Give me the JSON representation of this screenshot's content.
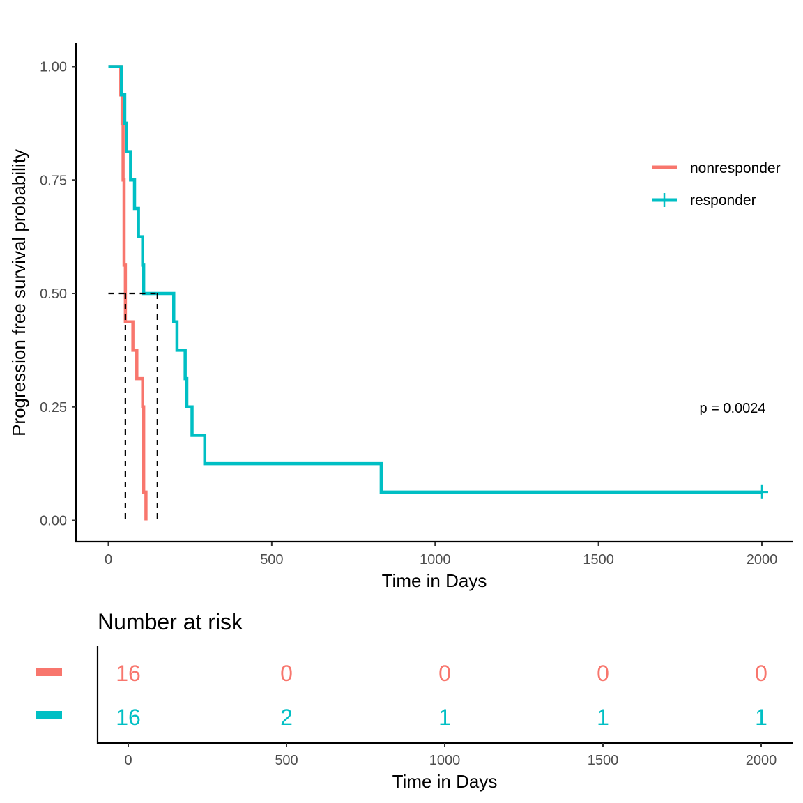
{
  "chart_data": [
    {
      "type": "line",
      "subtype": "kaplan-meier",
      "title": "",
      "xlabel": "Time in Days",
      "ylabel": "Progression free survival probability",
      "xlim": [
        -100,
        2100
      ],
      "ylim": [
        -0.05,
        1.05
      ],
      "x_ticks": [
        0,
        500,
        1000,
        1500,
        2000
      ],
      "x_tick_labels": [
        "0",
        "500",
        "1000",
        "1500",
        "2000"
      ],
      "y_ticks": [
        0,
        0.25,
        0.5,
        0.75,
        1
      ],
      "y_tick_labels": [
        "0.00",
        "0.25",
        "0.50",
        "0.75",
        "1.00"
      ],
      "grid": false,
      "legend_position": "right",
      "annotation": "p = 0.0024",
      "median_survival": {
        "y": 0.5,
        "x_values": [
          52,
          150
        ]
      },
      "series": [
        {
          "name": "nonresponder",
          "color": "#F8766D",
          "censor_marks": [],
          "steps": [
            [
              0,
              1.0
            ],
            [
              38,
              0.9375
            ],
            [
              42,
              0.875
            ],
            [
              45,
              0.75
            ],
            [
              48,
              0.5625
            ],
            [
              52,
              0.4375
            ],
            [
              75,
              0.375
            ],
            [
              87,
              0.3125
            ],
            [
              105,
              0.25
            ],
            [
              108,
              0.0625
            ],
            [
              115,
              0.0
            ]
          ]
        },
        {
          "name": "responder",
          "color": "#00BFC4",
          "censor_marks": [
            [
              2000,
              0.0625
            ]
          ],
          "steps": [
            [
              0,
              1.0
            ],
            [
              40,
              0.9375
            ],
            [
              50,
              0.875
            ],
            [
              55,
              0.8125
            ],
            [
              68,
              0.75
            ],
            [
              80,
              0.6875
            ],
            [
              92,
              0.625
            ],
            [
              105,
              0.5625
            ],
            [
              108,
              0.5
            ],
            [
              200,
              0.4375
            ],
            [
              210,
              0.375
            ],
            [
              235,
              0.3125
            ],
            [
              240,
              0.25
            ],
            [
              256,
              0.1875
            ],
            [
              295,
              0.125
            ],
            [
              835,
              0.0625
            ],
            [
              2000,
              0.0625
            ]
          ]
        }
      ]
    },
    {
      "type": "table",
      "title": "Number at risk",
      "xlabel": "Time in Days",
      "x_ticks": [
        0,
        500,
        1000,
        1500,
        2000
      ],
      "x_tick_labels": [
        "0",
        "500",
        "1000",
        "1500",
        "2000"
      ],
      "rows": [
        {
          "name": "nonresponder",
          "color": "#F8766D",
          "values": [
            "16",
            "0",
            "0",
            "0",
            "0"
          ]
        },
        {
          "name": "responder",
          "color": "#00BFC4",
          "values": [
            "16",
            "2",
            "1",
            "1",
            "1"
          ]
        }
      ]
    }
  ]
}
